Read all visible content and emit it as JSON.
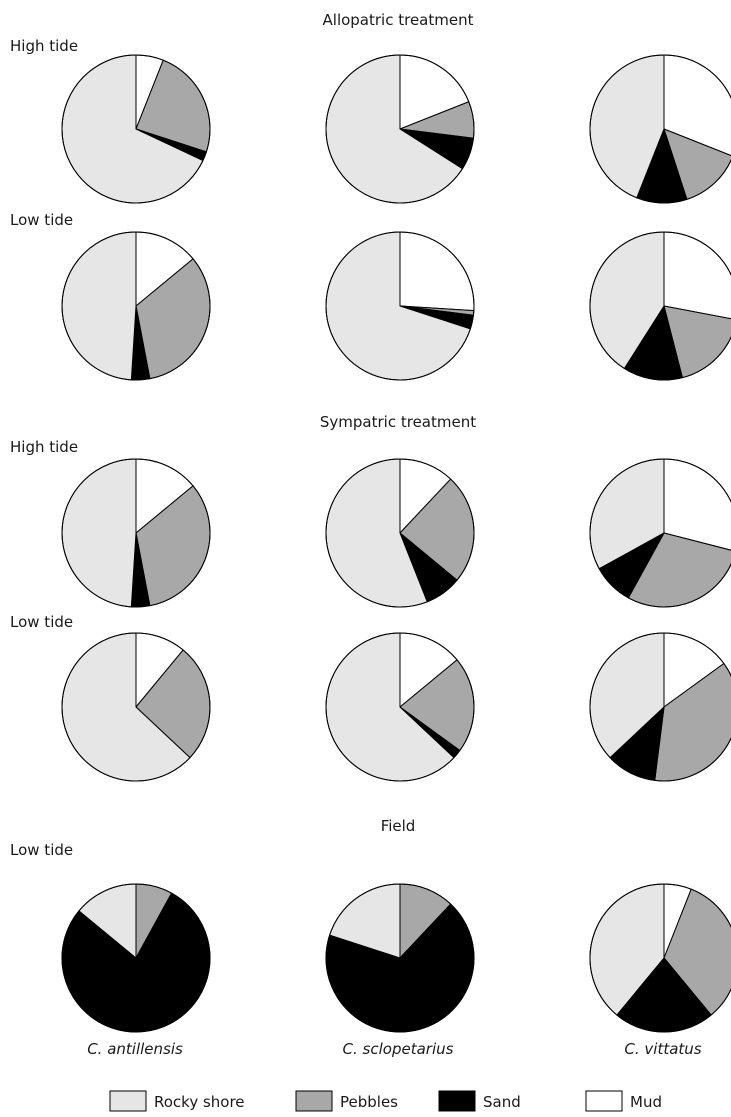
{
  "legend": [
    {
      "label": "Rocky shore",
      "color": "#e6e6e6"
    },
    {
      "label": "Pebbles",
      "color": "#a8a8a8"
    },
    {
      "label": "Sand",
      "color": "#000000"
    },
    {
      "label": "Mud",
      "color": "#ffffff"
    }
  ],
  "species": [
    "C. antillensis",
    "C. sclopetarius",
    "C. vittatus"
  ],
  "chart_data": {
    "type": "pie",
    "categories": [
      "Rocky shore",
      "Pebbles",
      "Sand",
      "Mud"
    ],
    "colors": [
      "#e6e6e6",
      "#a8a8a8",
      "#000000",
      "#ffffff"
    ],
    "sections": [
      {
        "title": "Allopatric treatment",
        "rows": [
          {
            "label": "High tide",
            "pies": [
              {
                "species": "C. antillensis",
                "values": [
                  0.68,
                  0.24,
                  0.02,
                  0.06
                ]
              },
              {
                "species": "C. sclopetarius",
                "values": [
                  0.66,
                  0.08,
                  0.07,
                  0.19
                ]
              },
              {
                "species": "C. vittatus",
                "values": [
                  0.44,
                  0.14,
                  0.11,
                  0.31
                ]
              }
            ]
          },
          {
            "label": "Low tide",
            "pies": [
              {
                "species": "C. antillensis",
                "values": [
                  0.49,
                  0.33,
                  0.04,
                  0.14
                ]
              },
              {
                "species": "C. sclopetarius",
                "values": [
                  0.7,
                  0.01,
                  0.03,
                  0.26
                ]
              },
              {
                "species": "C. vittatus",
                "values": [
                  0.41,
                  0.18,
                  0.13,
                  0.28
                ]
              }
            ]
          }
        ]
      },
      {
        "title": "Sympatric treatment",
        "rows": [
          {
            "label": "High tide",
            "pies": [
              {
                "species": "C. antillensis",
                "values": [
                  0.49,
                  0.33,
                  0.04,
                  0.14
                ]
              },
              {
                "species": "C. sclopetarius",
                "values": [
                  0.56,
                  0.24,
                  0.08,
                  0.12
                ]
              },
              {
                "species": "C. vittatus",
                "values": [
                  0.33,
                  0.29,
                  0.09,
                  0.29
                ]
              }
            ]
          },
          {
            "label": "Low tide",
            "pies": [
              {
                "species": "C. antillensis",
                "values": [
                  0.63,
                  0.26,
                  0.0,
                  0.11
                ]
              },
              {
                "species": "C. sclopetarius",
                "values": [
                  0.63,
                  0.21,
                  0.02,
                  0.14
                ]
              },
              {
                "species": "C. vittatus",
                "values": [
                  0.37,
                  0.37,
                  0.11,
                  0.15
                ]
              }
            ]
          }
        ]
      },
      {
        "title": "Field",
        "rows": [
          {
            "label": "Low tide",
            "pies": [
              {
                "species": "C. antillensis",
                "values": [
                  0.14,
                  0.08,
                  0.78,
                  0.0
                ]
              },
              {
                "species": "C. sclopetarius",
                "values": [
                  0.2,
                  0.12,
                  0.68,
                  0.0
                ]
              },
              {
                "species": "C. vittatus",
                "values": [
                  0.39,
                  0.33,
                  0.22,
                  0.06
                ]
              }
            ]
          }
        ]
      }
    ]
  }
}
